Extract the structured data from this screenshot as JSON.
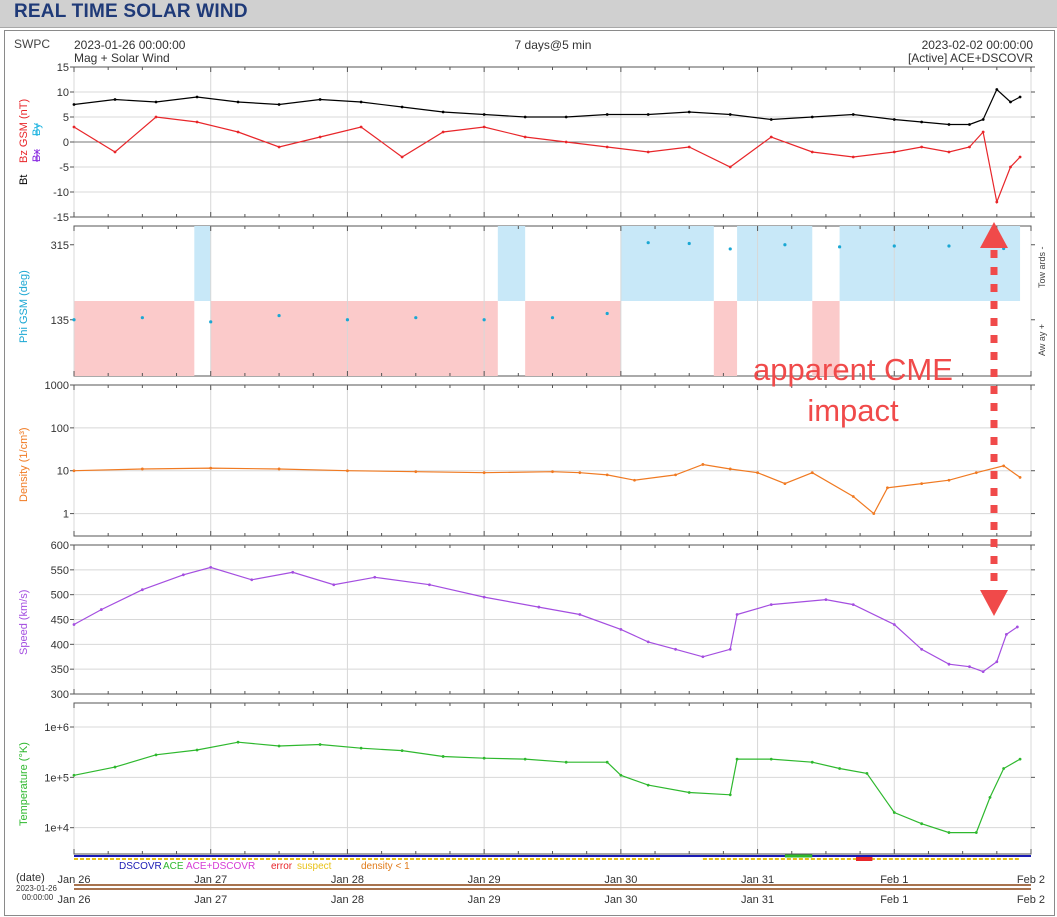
{
  "page": {
    "title": "REAL TIME SOLAR WIND",
    "source": "SWPC",
    "start_time": "2023-01-26 00:00:00",
    "end_time": "2023-02-02 00:00:00",
    "span": "7 days@5 min",
    "product": "Mag + Solar Wind",
    "active": "[Active] ACE+DSCOVR"
  },
  "annotation": {
    "line1": "apparent CME",
    "line2": "impact",
    "color": "#f04a4a"
  },
  "colors": {
    "bt": "#000000",
    "bz": "#e8262a",
    "bx": "#8a2be2",
    "by": "#1fb4e0",
    "phi_points": "#1aa7d3",
    "towards_fill": "#c8e8f8",
    "away_fill": "#fbcaca",
    "density": "#f07a22",
    "speed": "#a44ee0",
    "temperature": "#2eb82e",
    "grid": "#d8d8d8"
  },
  "chart_data": [
    {
      "type": "line",
      "name": "Mag",
      "ylabel_parts": [
        "Bt",
        "Bz GSM (nT)",
        "Bx",
        "By"
      ],
      "ylim": [
        -15,
        15
      ],
      "yticks": [
        15,
        10,
        5,
        0,
        -5,
        -10,
        -15
      ],
      "x_days": [
        0,
        0.3,
        0.6,
        0.9,
        1.2,
        1.5,
        1.8,
        2.1,
        2.4,
        2.7,
        3.0,
        3.3,
        3.6,
        3.9,
        4.2,
        4.5,
        4.8,
        5.1,
        5.4,
        5.7,
        6.0,
        6.2,
        6.4,
        6.55,
        6.65,
        6.75,
        6.85,
        6.92
      ],
      "series": [
        {
          "name": "Bt",
          "values": [
            7.5,
            8.5,
            8,
            9,
            8,
            7.5,
            8.5,
            8,
            7,
            6,
            5.5,
            5,
            5,
            5.5,
            5.5,
            6,
            5.5,
            4.5,
            5,
            5.5,
            4.5,
            4,
            3.5,
            3.5,
            4.5,
            10.5,
            8,
            9
          ]
        },
        {
          "name": "Bz GSM",
          "values": [
            3,
            -2,
            5,
            4,
            2,
            -1,
            1,
            3,
            -3,
            2,
            3,
            1,
            0,
            -1,
            -2,
            -1,
            -5,
            1,
            -2,
            -3,
            -2,
            -1,
            -2,
            -1,
            2,
            -12,
            -5,
            -3
          ]
        }
      ]
    },
    {
      "type": "scatter",
      "name": "Phi GSM",
      "ylabel": "Phi GSM (deg)",
      "yticks": [
        315,
        135
      ],
      "side_labels": [
        "Tow ards -",
        "Aw ay +"
      ],
      "sectors": [
        {
          "from": 0.0,
          "to": 0.88,
          "sector": "away"
        },
        {
          "from": 0.88,
          "to": 1.0,
          "sector": "towards"
        },
        {
          "from": 1.0,
          "to": 3.1,
          "sector": "away"
        },
        {
          "from": 3.1,
          "to": 3.3,
          "sector": "towards"
        },
        {
          "from": 3.3,
          "to": 4.0,
          "sector": "away"
        },
        {
          "from": 4.0,
          "to": 4.68,
          "sector": "towards"
        },
        {
          "from": 4.68,
          "to": 4.85,
          "sector": "away"
        },
        {
          "from": 4.85,
          "to": 5.4,
          "sector": "towards"
        },
        {
          "from": 5.4,
          "to": 5.6,
          "sector": "away"
        },
        {
          "from": 5.6,
          "to": 6.92,
          "sector": "towards"
        }
      ],
      "x_days": [
        0,
        0.5,
        1.0,
        1.5,
        2.0,
        2.5,
        3.0,
        3.5,
        3.9,
        4.2,
        4.5,
        4.8,
        5.2,
        5.6,
        6.0,
        6.4,
        6.8
      ],
      "values": [
        135,
        140,
        130,
        145,
        135,
        140,
        135,
        140,
        150,
        320,
        318,
        305,
        315,
        310,
        312,
        312,
        306
      ]
    },
    {
      "type": "line",
      "name": "Density",
      "ylabel": "Density (1/cm³)",
      "scale": "log",
      "ylim": [
        0.3,
        1000
      ],
      "yticks": [
        1000,
        100,
        10,
        1
      ],
      "x_days": [
        0,
        0.5,
        1.0,
        1.5,
        2.0,
        2.5,
        3.0,
        3.5,
        3.7,
        3.9,
        4.1,
        4.4,
        4.6,
        4.8,
        5.0,
        5.2,
        5.4,
        5.7,
        5.85,
        5.95,
        6.2,
        6.4,
        6.6,
        6.8,
        6.92
      ],
      "values": [
        10,
        11,
        11.5,
        11,
        10,
        9.5,
        9,
        9.5,
        9,
        8,
        6,
        8,
        14,
        11,
        9,
        5,
        9,
        2.5,
        1,
        4,
        5,
        6,
        9,
        13,
        7
      ]
    },
    {
      "type": "line",
      "name": "Speed",
      "ylabel": "Speed (km/s)",
      "ylim": [
        300,
        600
      ],
      "yticks": [
        600,
        550,
        500,
        450,
        400,
        350,
        300
      ],
      "x_days": [
        0,
        0.2,
        0.5,
        0.8,
        1.0,
        1.3,
        1.6,
        1.9,
        2.2,
        2.6,
        3.0,
        3.4,
        3.7,
        4.0,
        4.2,
        4.4,
        4.6,
        4.8,
        4.85,
        5.1,
        5.5,
        5.7,
        6.0,
        6.2,
        6.4,
        6.55,
        6.65,
        6.75,
        6.82,
        6.9
      ],
      "values": [
        440,
        470,
        510,
        540,
        555,
        530,
        545,
        520,
        535,
        520,
        495,
        475,
        460,
        430,
        405,
        390,
        375,
        390,
        460,
        480,
        490,
        480,
        440,
        390,
        360,
        355,
        345,
        365,
        420,
        435
      ]
    },
    {
      "type": "line",
      "name": "Temperature",
      "ylabel": "Temperature (°K)",
      "scale": "log",
      "ylim": [
        3000,
        3000000
      ],
      "yticks": [
        "1e+6",
        "1e+5",
        "1e+4"
      ],
      "ytick_values": [
        1000000,
        100000,
        10000
      ],
      "x_days": [
        0,
        0.3,
        0.6,
        0.9,
        1.2,
        1.5,
        1.8,
        2.1,
        2.4,
        2.7,
        3.0,
        3.3,
        3.6,
        3.9,
        4.0,
        4.2,
        4.5,
        4.8,
        4.85,
        5.1,
        5.4,
        5.6,
        5.8,
        6.0,
        6.2,
        6.4,
        6.6,
        6.7,
        6.8,
        6.92
      ],
      "values": [
        110000,
        160000,
        280000,
        350000,
        500000,
        420000,
        450000,
        380000,
        340000,
        260000,
        240000,
        230000,
        200000,
        200000,
        110000,
        70000,
        50000,
        45000,
        230000,
        230000,
        200000,
        150000,
        120000,
        20000,
        12000,
        8000,
        8000,
        40000,
        150000,
        230000
      ]
    }
  ],
  "status_bar": {
    "legend": [
      {
        "label": "DSCOVR",
        "color": "#1a1ab4"
      },
      {
        "label": "ACE",
        "color": "#2eb82e"
      },
      {
        "label": "ACE+DSCOVR",
        "color": "#d53ad5"
      },
      {
        "label": "error",
        "color": "#e8262a"
      },
      {
        "label": "suspect",
        "color": "#e8c21a"
      },
      {
        "label": "density < 1",
        "color": "#e07a1a"
      }
    ]
  },
  "time_axis": {
    "date_label": "(date)",
    "start_stamp_date": "2023-01-26",
    "start_stamp_time": "00:00:00",
    "ticks": [
      "Jan 26",
      "Jan 27",
      "Jan 28",
      "Jan 29",
      "Jan 30",
      "Jan 31",
      "Feb 1",
      "Feb 2"
    ]
  }
}
